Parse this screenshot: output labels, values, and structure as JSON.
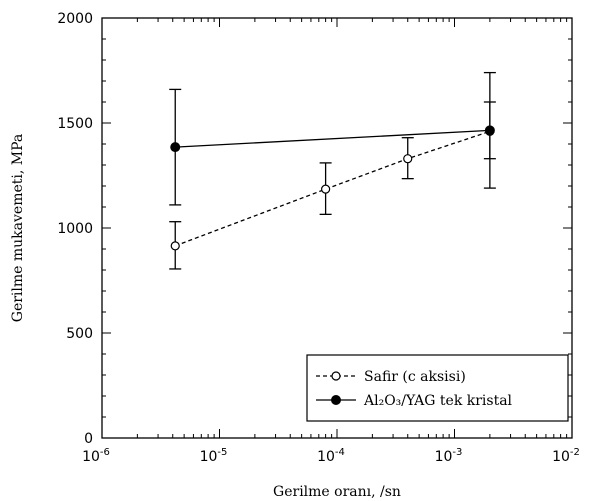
{
  "chart_data": {
    "type": "scatter",
    "xscale": "log",
    "xlabel": "Gerilme oranı, /sn",
    "ylabel": "Gerilme mukavemeti, MPa",
    "xlim": [
      1e-06,
      0.01
    ],
    "ylim": [
      0,
      2000
    ],
    "grid": false,
    "legend_position": "bottom-right",
    "x_ticks": [
      {
        "value": 1e-06,
        "base": "10",
        "exp": "-6"
      },
      {
        "value": 1e-05,
        "base": "10",
        "exp": "-5"
      },
      {
        "value": 0.0001,
        "base": "10",
        "exp": "-4"
      },
      {
        "value": 0.001,
        "base": "10",
        "exp": "-3"
      },
      {
        "value": 0.01,
        "base": "10",
        "exp": "-2"
      }
    ],
    "y_ticks": [
      {
        "value": 0,
        "label": "0"
      },
      {
        "value": 500,
        "label": "500"
      },
      {
        "value": 1000,
        "label": "1000"
      },
      {
        "value": 1500,
        "label": "1500"
      },
      {
        "value": 2000,
        "label": "2000"
      }
    ],
    "series": [
      {
        "name": "Safir (c aksisi)",
        "line": "dashed",
        "marker": "open-circle",
        "color": "#000000",
        "points": [
          {
            "x": 4.2e-06,
            "y": 915,
            "err_low": 805,
            "err_high": 1030
          },
          {
            "x": 8e-05,
            "y": 1185,
            "err_low": 1065,
            "err_high": 1310
          },
          {
            "x": 0.0004,
            "y": 1330,
            "err_low": 1235,
            "err_high": 1430
          },
          {
            "x": 0.002,
            "y": 1460,
            "err_low": 1330,
            "err_high": 1600
          }
        ]
      },
      {
        "name": "Al₂O₃/YAG tek kristal",
        "line": "solid",
        "marker": "filled-circle",
        "color": "#000000",
        "points": [
          {
            "x": 4.2e-06,
            "y": 1385,
            "err_low": 1110,
            "err_high": 1660
          },
          {
            "x": 0.002,
            "y": 1465,
            "err_low": 1190,
            "err_high": 1740
          }
        ]
      }
    ]
  }
}
